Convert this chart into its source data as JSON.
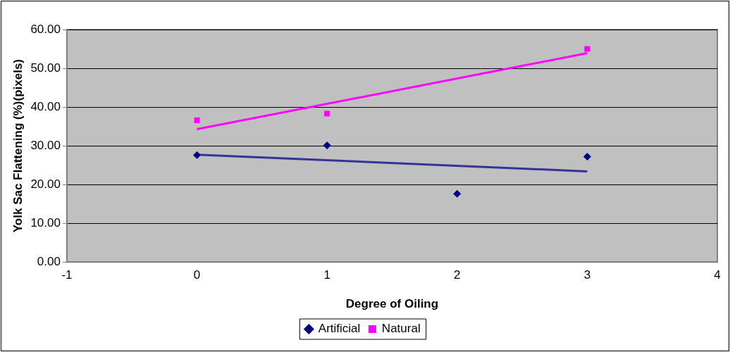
{
  "chart_data": {
    "type": "scatter",
    "xlabel": "Degree of Oiling",
    "ylabel": "Yolk Sac Flattening (%)(pixels)",
    "xlim": [
      -1,
      4
    ],
    "xticks": [
      -1,
      0,
      1,
      2,
      3,
      4
    ],
    "ylim": [
      0,
      60
    ],
    "yticks": [
      {
        "value": 0,
        "label": "0.00"
      },
      {
        "value": 10,
        "label": "10.00"
      },
      {
        "value": 20,
        "label": "20.00"
      },
      {
        "value": 30,
        "label": "30.00"
      },
      {
        "value": 40,
        "label": "40.00"
      },
      {
        "value": 50,
        "label": "50.00"
      },
      {
        "value": 60,
        "label": "60.00"
      }
    ],
    "grid": "y",
    "legend": "bottom",
    "series": [
      {
        "name": "Artificial",
        "color": "#000080",
        "marker": "diamond",
        "x": [
          0,
          1,
          2,
          3
        ],
        "values": [
          27.6,
          30.1,
          17.6,
          27.2
        ]
      },
      {
        "name": "Natural",
        "color": "#ff00ff",
        "marker": "square",
        "x": [
          0,
          1,
          3
        ],
        "values": [
          36.6,
          38.3,
          55.0
        ]
      },
      {
        "type": "line",
        "color": "#333399",
        "marker": "none",
        "x": [
          0,
          3
        ],
        "values": [
          27.7,
          23.4
        ]
      },
      {
        "type": "line",
        "color": "#ff00ff",
        "marker": "none",
        "x": [
          0,
          3
        ],
        "values": [
          34.3,
          53.9
        ]
      }
    ]
  }
}
